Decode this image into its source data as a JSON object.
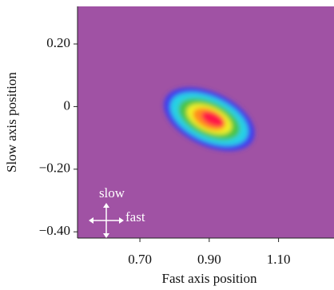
{
  "chart_data": {
    "type": "heatmap",
    "xlabel": "Fast axis position",
    "ylabel": "Slow axis position",
    "xlim": [
      0.52,
      1.26
    ],
    "ylim": [
      -0.42,
      0.32
    ],
    "xticks": [
      {
        "value": 0.7,
        "label": "0.70"
      },
      {
        "value": 0.9,
        "label": "0.90"
      },
      {
        "value": 1.1,
        "label": "1.10"
      }
    ],
    "yticks": [
      {
        "value": 0.2,
        "label": "0.20"
      },
      0,
      {
        "value": -0.2,
        "label": "−0.20"
      },
      {
        "value": -0.4,
        "label": "−0.40"
      }
    ],
    "background_color": "#a052a4",
    "annotations": [
      "slow",
      "fast"
    ],
    "levels": [
      {
        "color": "#3c3cf0",
        "cx": 0.9,
        "cy": -0.04,
        "rx": 0.14,
        "ry": 0.085,
        "angle": 25
      },
      {
        "color": "#28d2e6",
        "cx": 0.9,
        "cy": -0.04,
        "rx": 0.12,
        "ry": 0.07,
        "angle": 25
      },
      {
        "color": "#46c446",
        "cx": 0.9,
        "cy": -0.04,
        "rx": 0.095,
        "ry": 0.055,
        "angle": 25
      },
      {
        "color": "#f0f028",
        "cx": 0.9,
        "cy": -0.04,
        "rx": 0.07,
        "ry": 0.04,
        "angle": 25
      },
      {
        "color": "#ff8c1e",
        "cx": 0.9,
        "cy": -0.04,
        "rx": 0.05,
        "ry": 0.03,
        "angle": 25
      },
      {
        "color": "#ff1446",
        "cx": 0.91,
        "cy": -0.04,
        "rx": 0.035,
        "ry": 0.02,
        "angle": 25
      }
    ]
  }
}
